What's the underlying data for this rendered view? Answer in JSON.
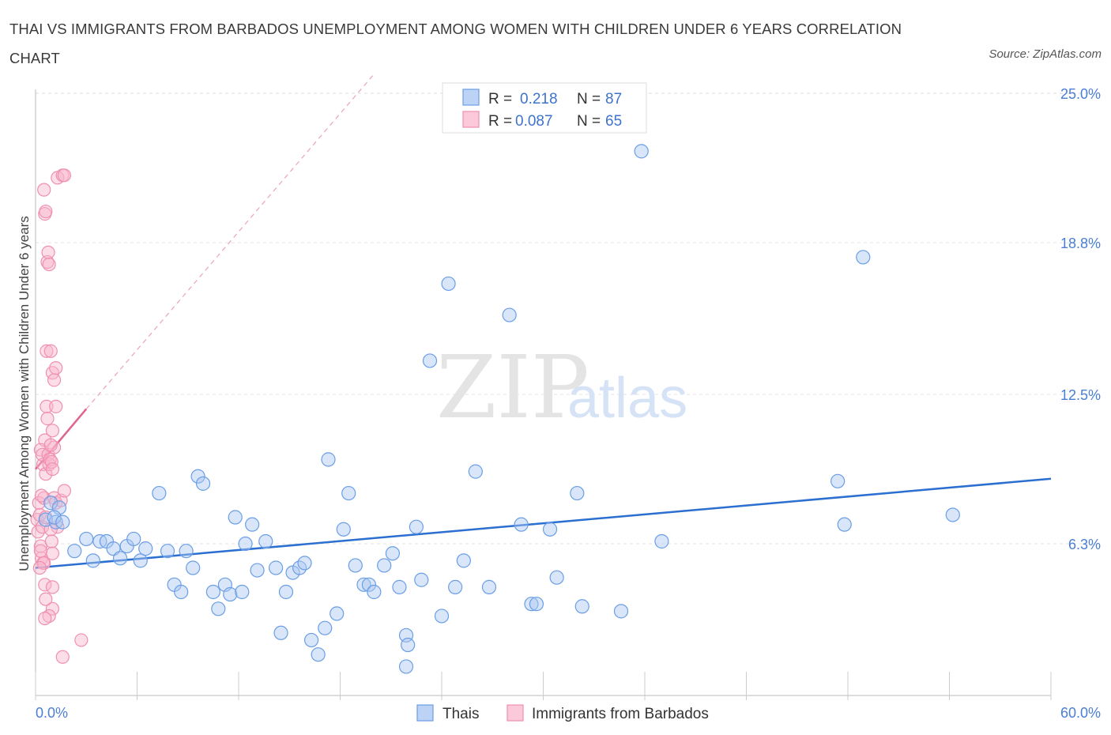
{
  "title": "THAI VS IMMIGRANTS FROM BARBADOS UNEMPLOYMENT AMONG WOMEN WITH CHILDREN UNDER 6 YEARS CORRELATION CHART",
  "source": "Source: ZipAtlas.com",
  "watermark": {
    "zip": "ZIP",
    "atlas": "atlas"
  },
  "legend": {
    "rows": [
      {
        "r_label": "R =",
        "r_value": "0.218",
        "n_label": "N =",
        "n_value": "87"
      },
      {
        "r_label": "R =",
        "r_value": "0.087",
        "n_label": "N =",
        "n_value": "65"
      }
    ]
  },
  "chart_data": {
    "type": "scatter",
    "title": "THAI VS IMMIGRANTS FROM BARBADOS UNEMPLOYMENT AMONG WOMEN WITH CHILDREN UNDER 6 YEARS CORRELATION CHART",
    "xlabel": "",
    "ylabel": "Unemployment Among Women with Children Under 6 years",
    "xlim": [
      0,
      60
    ],
    "ylim": [
      0,
      25.5
    ],
    "x_tick_labels": [
      "0.0%",
      "60.0%"
    ],
    "y_ticks": [
      6.3,
      12.5,
      18.8,
      25.0
    ],
    "y_tick_labels": [
      "6.3%",
      "12.5%",
      "18.8%",
      "25.0%"
    ],
    "grid": "horizontal dashed",
    "legend_placement": "top-center",
    "colors": {
      "thais": "#6a9ee6",
      "barbados": "#f08fb0",
      "thais_line": "#2b6fd0",
      "barbados_line": "#e0648e"
    },
    "series": [
      {
        "name": "Thais",
        "trend": {
          "x": [
            0,
            60
          ],
          "y": [
            5.3,
            9.0
          ]
        },
        "points": [
          [
            0.6,
            7.3
          ],
          [
            0.9,
            8.0
          ],
          [
            1.2,
            7.2
          ],
          [
            1.4,
            7.8
          ],
          [
            1.1,
            7.4
          ],
          [
            1.6,
            7.2
          ],
          [
            2.3,
            6.0
          ],
          [
            3.0,
            6.5
          ],
          [
            3.4,
            5.6
          ],
          [
            3.8,
            6.4
          ],
          [
            4.2,
            6.4
          ],
          [
            4.6,
            6.1
          ],
          [
            5.0,
            5.7
          ],
          [
            5.4,
            6.2
          ],
          [
            5.8,
            6.5
          ],
          [
            6.2,
            5.6
          ],
          [
            6.5,
            6.1
          ],
          [
            7.3,
            8.4
          ],
          [
            7.8,
            6.0
          ],
          [
            8.2,
            4.6
          ],
          [
            8.6,
            4.3
          ],
          [
            8.9,
            6.0
          ],
          [
            9.3,
            5.3
          ],
          [
            9.6,
            9.1
          ],
          [
            9.9,
            8.8
          ],
          [
            10.5,
            4.3
          ],
          [
            10.8,
            3.6
          ],
          [
            11.2,
            4.6
          ],
          [
            11.5,
            4.2
          ],
          [
            11.8,
            7.4
          ],
          [
            12.2,
            4.3
          ],
          [
            12.4,
            6.3
          ],
          [
            12.8,
            7.1
          ],
          [
            13.1,
            5.2
          ],
          [
            13.6,
            6.4
          ],
          [
            14.2,
            5.3
          ],
          [
            14.5,
            2.6
          ],
          [
            14.8,
            4.3
          ],
          [
            15.2,
            5.1
          ],
          [
            15.6,
            5.3
          ],
          [
            15.9,
            5.5
          ],
          [
            16.3,
            2.3
          ],
          [
            16.7,
            1.7
          ],
          [
            17.1,
            2.8
          ],
          [
            17.3,
            9.8
          ],
          [
            17.8,
            3.4
          ],
          [
            18.2,
            6.9
          ],
          [
            18.5,
            8.4
          ],
          [
            18.9,
            5.4
          ],
          [
            19.4,
            4.6
          ],
          [
            19.7,
            4.6
          ],
          [
            20.0,
            4.3
          ],
          [
            20.6,
            5.4
          ],
          [
            21.1,
            5.9
          ],
          [
            21.5,
            4.5
          ],
          [
            21.9,
            2.5
          ],
          [
            22.0,
            2.1
          ],
          [
            21.9,
            1.2
          ],
          [
            22.5,
            7.0
          ],
          [
            22.8,
            4.8
          ],
          [
            23.3,
            13.9
          ],
          [
            24.0,
            3.3
          ],
          [
            24.4,
            17.1
          ],
          [
            24.8,
            4.5
          ],
          [
            25.3,
            5.6
          ],
          [
            26.0,
            9.3
          ],
          [
            26.8,
            4.5
          ],
          [
            28.0,
            15.8
          ],
          [
            28.7,
            7.1
          ],
          [
            29.3,
            3.8
          ],
          [
            29.6,
            3.8
          ],
          [
            30.4,
            6.9
          ],
          [
            30.8,
            4.9
          ],
          [
            32.0,
            8.4
          ],
          [
            32.3,
            3.7
          ],
          [
            34.6,
            3.5
          ],
          [
            35.8,
            22.6
          ],
          [
            37.0,
            6.4
          ],
          [
            47.4,
            8.9
          ],
          [
            47.8,
            7.1
          ],
          [
            48.9,
            18.2
          ],
          [
            54.2,
            7.5
          ]
        ]
      },
      {
        "name": "Immigrants from Barbados",
        "trend": {
          "x": [
            0,
            3.0
          ],
          "y": [
            9.4,
            11.9
          ]
        },
        "trend_extension": {
          "x": [
            3.0,
            20.0
          ],
          "y": [
            11.9,
            25.8
          ]
        },
        "points": [
          [
            0.1,
            7.3
          ],
          [
            0.15,
            6.8
          ],
          [
            0.2,
            8.0
          ],
          [
            0.25,
            7.5
          ],
          [
            0.3,
            6.2
          ],
          [
            0.35,
            5.7
          ],
          [
            0.4,
            7.0
          ],
          [
            0.45,
            9.6
          ],
          [
            0.5,
            8.2
          ],
          [
            0.55,
            10.6
          ],
          [
            0.6,
            9.2
          ],
          [
            0.3,
            10.2
          ],
          [
            0.4,
            10.0
          ],
          [
            0.45,
            5.5
          ],
          [
            0.5,
            5.5
          ],
          [
            0.55,
            4.6
          ],
          [
            0.6,
            7.4
          ],
          [
            0.65,
            12.0
          ],
          [
            0.7,
            11.5
          ],
          [
            0.75,
            10.0
          ],
          [
            0.8,
            9.6
          ],
          [
            0.85,
            9.8
          ],
          [
            0.5,
            21.0
          ],
          [
            0.55,
            20.0
          ],
          [
            0.6,
            20.1
          ],
          [
            0.7,
            18.0
          ],
          [
            0.75,
            18.4
          ],
          [
            0.8,
            17.9
          ],
          [
            0.65,
            14.3
          ],
          [
            0.9,
            14.3
          ],
          [
            1.0,
            13.4
          ],
          [
            1.1,
            13.1
          ],
          [
            1.2,
            13.6
          ],
          [
            1.2,
            12.0
          ],
          [
            1.0,
            11.0
          ],
          [
            1.1,
            10.3
          ],
          [
            0.9,
            10.4
          ],
          [
            0.95,
            9.7
          ],
          [
            1.0,
            9.4
          ],
          [
            1.1,
            8.2
          ],
          [
            1.2,
            8.0
          ],
          [
            1.3,
            7.0
          ],
          [
            0.9,
            6.9
          ],
          [
            0.95,
            6.4
          ],
          [
            1.0,
            5.9
          ],
          [
            1.0,
            4.5
          ],
          [
            1.0,
            3.6
          ],
          [
            0.8,
            3.3
          ],
          [
            0.6,
            4.0
          ],
          [
            0.55,
            3.2
          ],
          [
            1.3,
            21.5
          ],
          [
            1.6,
            21.6
          ],
          [
            1.7,
            21.6
          ],
          [
            1.5,
            8.1
          ],
          [
            1.7,
            8.5
          ],
          [
            1.6,
            1.6
          ],
          [
            2.7,
            2.3
          ],
          [
            0.35,
            8.3
          ],
          [
            0.3,
            6.0
          ],
          [
            0.25,
            5.3
          ]
        ]
      }
    ]
  },
  "bottom_legend": [
    {
      "label": "Thais"
    },
    {
      "label": "Immigrants from Barbados"
    }
  ]
}
